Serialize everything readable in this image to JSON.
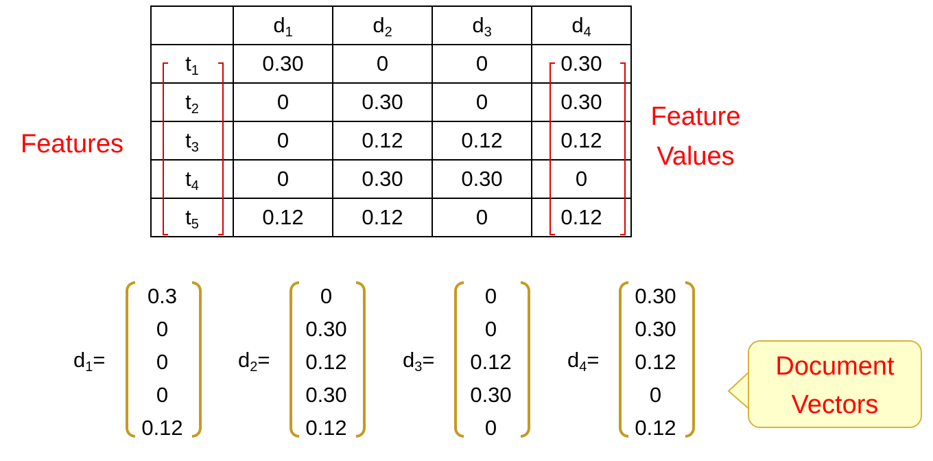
{
  "table": {
    "column_headers": [
      {
        "base": "d",
        "sub": "1"
      },
      {
        "base": "d",
        "sub": "2"
      },
      {
        "base": "d",
        "sub": "3"
      },
      {
        "base": "d",
        "sub": "4"
      }
    ],
    "rows": [
      {
        "base": "t",
        "sub": "1",
        "values": [
          "0.30",
          "0",
          "0",
          "0.30"
        ]
      },
      {
        "base": "t",
        "sub": "2",
        "values": [
          "0",
          "0.30",
          "0",
          "0.30"
        ]
      },
      {
        "base": "t",
        "sub": "3",
        "values": [
          "0",
          "0.12",
          "0.12",
          "0.12"
        ]
      },
      {
        "base": "t",
        "sub": "4",
        "values": [
          "0",
          "0.30",
          "0.30",
          "0"
        ]
      },
      {
        "base": "t",
        "sub": "5",
        "values": [
          "0.12",
          "0.12",
          "0",
          "0.12"
        ]
      }
    ]
  },
  "annotations": {
    "features": "Features",
    "feature_values_line1": "Feature",
    "feature_values_line2": "Values",
    "annotation_color": "#ff0000"
  },
  "vectors": [
    {
      "base": "d",
      "sub": "1",
      "eq": "=",
      "values": [
        "0.3",
        "0",
        "0",
        "0",
        "0.12"
      ]
    },
    {
      "base": "d",
      "sub": "2",
      "eq": "=",
      "values": [
        "0",
        "0.30",
        "0.12",
        "0.30",
        "0.12"
      ]
    },
    {
      "base": "d",
      "sub": "3",
      "eq": "=",
      "values": [
        "0",
        "0",
        "0.12",
        "0.30",
        "0"
      ]
    },
    {
      "base": "d",
      "sub": "4",
      "eq": "=",
      "values": [
        "0.30",
        "0.30",
        "0.12",
        "0",
        "0.12"
      ]
    }
  ],
  "vector_paren_color": "#c59a22",
  "callout": {
    "line1": "Document",
    "line2": "Vectors",
    "background": "#ffffcc"
  }
}
